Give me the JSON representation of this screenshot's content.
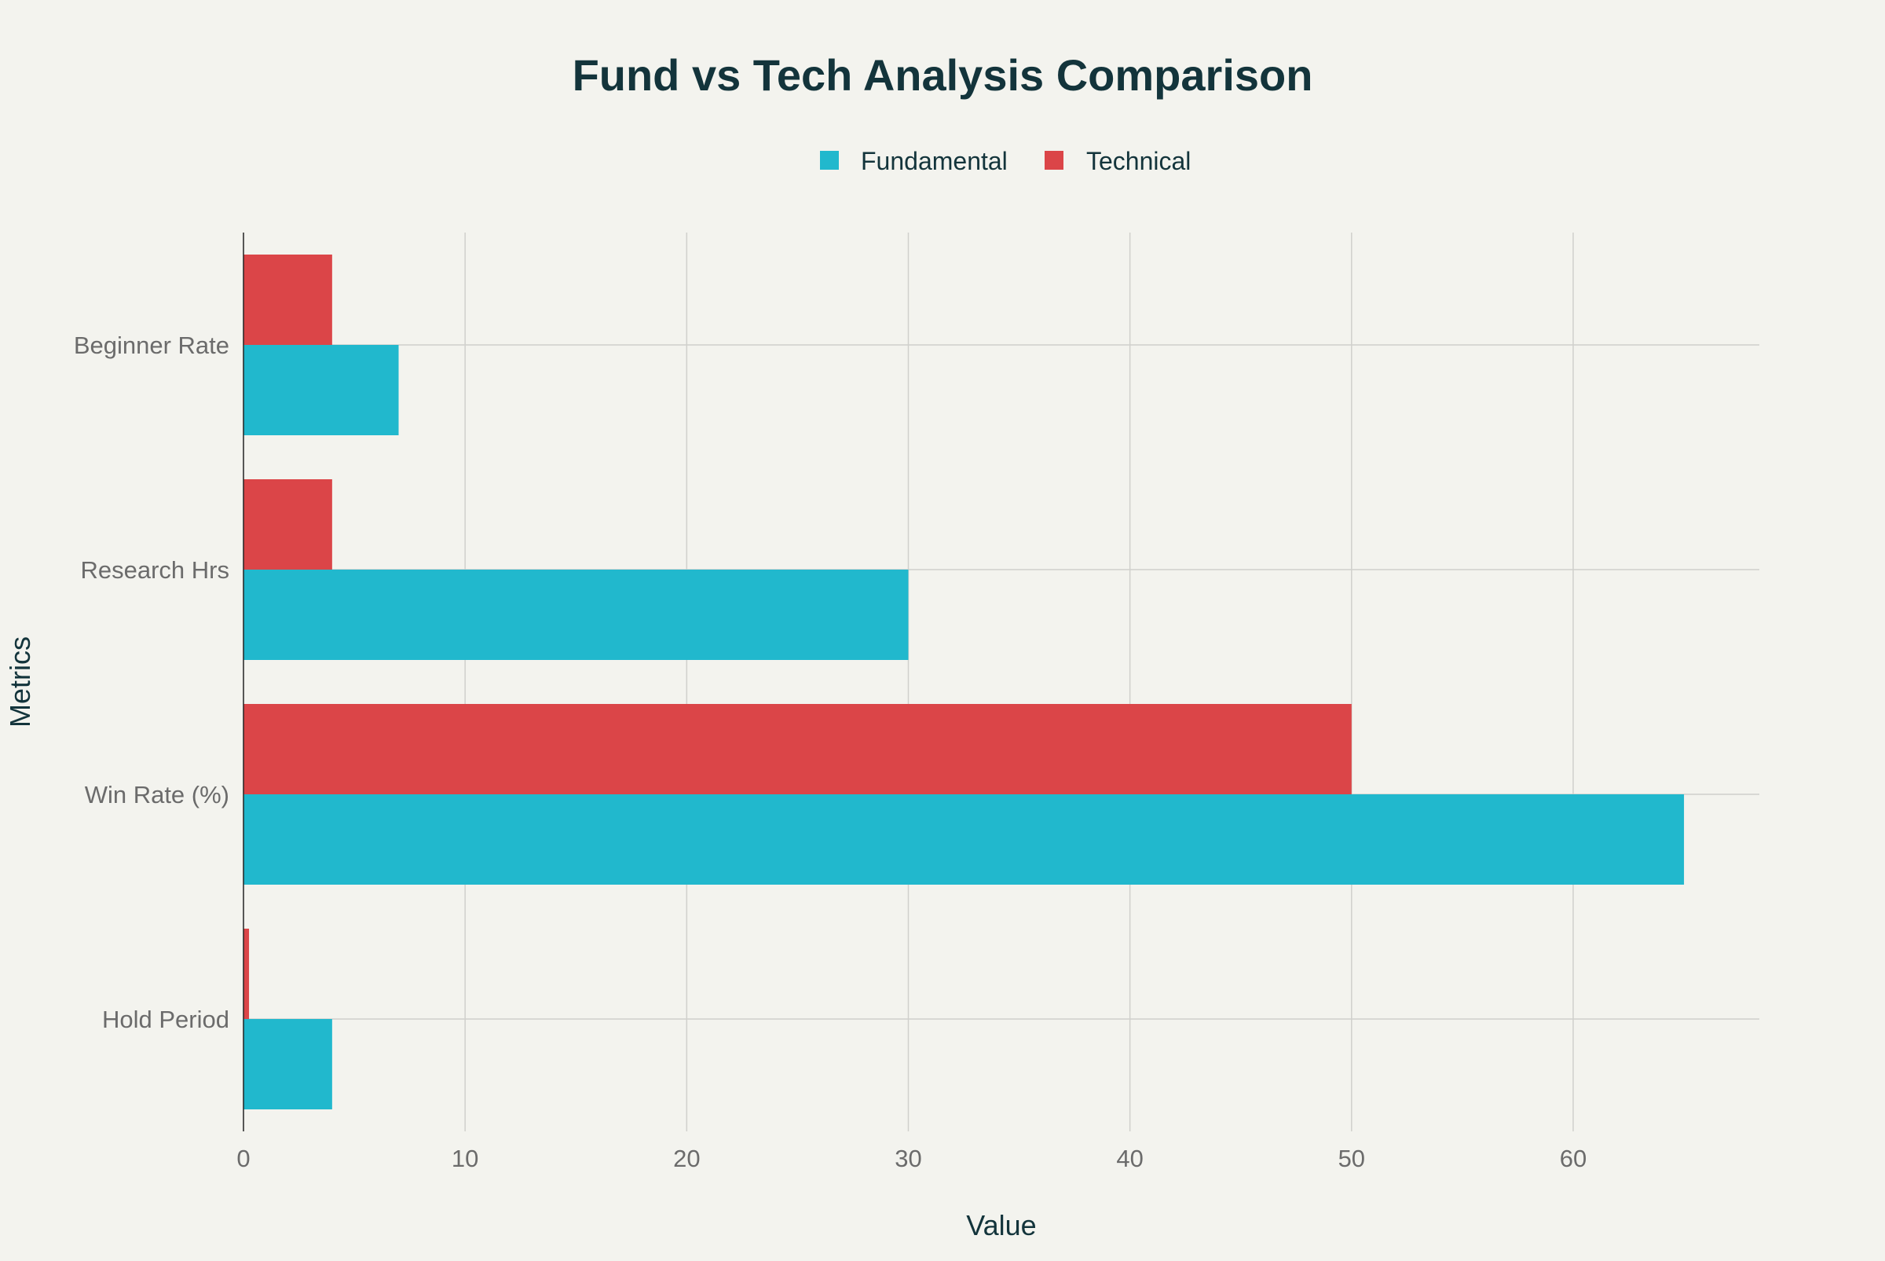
{
  "chart_data": {
    "type": "bar",
    "orientation": "horizontal",
    "title": "Fund vs Tech Analysis Comparison",
    "xlabel": "Value",
    "ylabel": "Metrics",
    "categories": [
      "Beginner Rate",
      "Research Hrs",
      "Win Rate (%)",
      "Hold Period"
    ],
    "series": [
      {
        "name": "Fundamental",
        "color": "#21b8cd",
        "values": [
          7,
          30,
          65,
          4
        ]
      },
      {
        "name": "Technical",
        "color": "#db4548",
        "values": [
          4,
          4,
          50,
          0.25
        ]
      }
    ],
    "xlim": [
      0,
      68.4
    ],
    "xticks": [
      0,
      10,
      20,
      30,
      40,
      50,
      60
    ],
    "grid": true,
    "legend_position": "top-center"
  }
}
